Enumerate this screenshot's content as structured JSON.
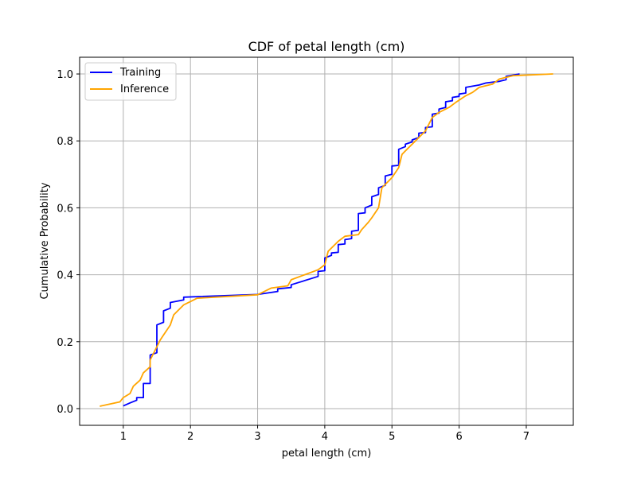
{
  "chart_data": {
    "type": "line",
    "title": "CDF of petal length (cm)",
    "xlabel": "petal length (cm)",
    "ylabel": "Cumulative Probability",
    "xlim": [
      0.35,
      7.7
    ],
    "ylim": [
      -0.05,
      1.05
    ],
    "x_ticks": [
      1,
      2,
      3,
      4,
      5,
      6,
      7
    ],
    "y_ticks": [
      0.0,
      0.2,
      0.4,
      0.6,
      0.8,
      1.0
    ],
    "x_tick_labels": [
      "1",
      "2",
      "3",
      "4",
      "5",
      "6",
      "7"
    ],
    "y_tick_labels": [
      "0.0",
      "0.2",
      "0.4",
      "0.6",
      "0.8",
      "1.0"
    ],
    "grid": true,
    "legend_position": "top-left",
    "series": [
      {
        "name": "Training",
        "color": "#0000ff",
        "points": [
          [
            1.0,
            0.008
          ],
          [
            1.1,
            0.017
          ],
          [
            1.2,
            0.025
          ],
          [
            1.2,
            0.033
          ],
          [
            1.3,
            0.033
          ],
          [
            1.3,
            0.075
          ],
          [
            1.4,
            0.075
          ],
          [
            1.4,
            0.16
          ],
          [
            1.5,
            0.167
          ],
          [
            1.5,
            0.25
          ],
          [
            1.6,
            0.258
          ],
          [
            1.6,
            0.292
          ],
          [
            1.7,
            0.3
          ],
          [
            1.7,
            0.317
          ],
          [
            1.9,
            0.325
          ],
          [
            1.9,
            0.333
          ],
          [
            3.0,
            0.341
          ],
          [
            3.3,
            0.35
          ],
          [
            3.3,
            0.358
          ],
          [
            3.5,
            0.362
          ],
          [
            3.5,
            0.37
          ],
          [
            3.9,
            0.395
          ],
          [
            3.9,
            0.41
          ],
          [
            4.0,
            0.412
          ],
          [
            4.0,
            0.45
          ],
          [
            4.1,
            0.458
          ],
          [
            4.1,
            0.465
          ],
          [
            4.2,
            0.467
          ],
          [
            4.2,
            0.49
          ],
          [
            4.3,
            0.492
          ],
          [
            4.3,
            0.505
          ],
          [
            4.4,
            0.508
          ],
          [
            4.4,
            0.53
          ],
          [
            4.5,
            0.533
          ],
          [
            4.5,
            0.583
          ],
          [
            4.6,
            0.585
          ],
          [
            4.6,
            0.6
          ],
          [
            4.7,
            0.608
          ],
          [
            4.7,
            0.633
          ],
          [
            4.8,
            0.64
          ],
          [
            4.8,
            0.66
          ],
          [
            4.9,
            0.667
          ],
          [
            4.9,
            0.695
          ],
          [
            5.0,
            0.7
          ],
          [
            5.0,
            0.725
          ],
          [
            5.1,
            0.727
          ],
          [
            5.1,
            0.775
          ],
          [
            5.2,
            0.783
          ],
          [
            5.2,
            0.79
          ],
          [
            5.3,
            0.797
          ],
          [
            5.3,
            0.803
          ],
          [
            5.4,
            0.81
          ],
          [
            5.4,
            0.823
          ],
          [
            5.5,
            0.825
          ],
          [
            5.5,
            0.84
          ],
          [
            5.6,
            0.842
          ],
          [
            5.6,
            0.88
          ],
          [
            5.7,
            0.883
          ],
          [
            5.7,
            0.895
          ],
          [
            5.8,
            0.9
          ],
          [
            5.8,
            0.917
          ],
          [
            5.9,
            0.92
          ],
          [
            5.9,
            0.93
          ],
          [
            6.0,
            0.933
          ],
          [
            6.0,
            0.94
          ],
          [
            6.1,
            0.943
          ],
          [
            6.1,
            0.96
          ],
          [
            6.3,
            0.967
          ],
          [
            6.4,
            0.973
          ],
          [
            6.6,
            0.978
          ],
          [
            6.7,
            0.983
          ],
          [
            6.7,
            0.993
          ],
          [
            6.9,
            1.0
          ]
        ]
      },
      {
        "name": "Inference",
        "color": "#ffa500",
        "points": [
          [
            0.65,
            0.007
          ],
          [
            0.95,
            0.02
          ],
          [
            1.0,
            0.033
          ],
          [
            1.1,
            0.045
          ],
          [
            1.15,
            0.067
          ],
          [
            1.25,
            0.085
          ],
          [
            1.3,
            0.107
          ],
          [
            1.4,
            0.125
          ],
          [
            1.4,
            0.145
          ],
          [
            1.45,
            0.165
          ],
          [
            1.5,
            0.185
          ],
          [
            1.55,
            0.205
          ],
          [
            1.6,
            0.22
          ],
          [
            1.65,
            0.235
          ],
          [
            1.7,
            0.25
          ],
          [
            1.75,
            0.28
          ],
          [
            1.8,
            0.29
          ],
          [
            1.9,
            0.31
          ],
          [
            2.0,
            0.32
          ],
          [
            2.1,
            0.33
          ],
          [
            3.0,
            0.34
          ],
          [
            3.2,
            0.36
          ],
          [
            3.45,
            0.367
          ],
          [
            3.5,
            0.385
          ],
          [
            3.7,
            0.4
          ],
          [
            3.9,
            0.415
          ],
          [
            4.0,
            0.43
          ],
          [
            4.05,
            0.47
          ],
          [
            4.2,
            0.5
          ],
          [
            4.3,
            0.515
          ],
          [
            4.5,
            0.52
          ],
          [
            4.55,
            0.535
          ],
          [
            4.65,
            0.557
          ],
          [
            4.7,
            0.57
          ],
          [
            4.8,
            0.6
          ],
          [
            4.85,
            0.66
          ],
          [
            5.0,
            0.69
          ],
          [
            5.1,
            0.72
          ],
          [
            5.15,
            0.76
          ],
          [
            5.25,
            0.78
          ],
          [
            5.35,
            0.8
          ],
          [
            5.5,
            0.83
          ],
          [
            5.55,
            0.85
          ],
          [
            5.6,
            0.87
          ],
          [
            5.7,
            0.885
          ],
          [
            5.85,
            0.9
          ],
          [
            5.95,
            0.915
          ],
          [
            6.1,
            0.935
          ],
          [
            6.2,
            0.945
          ],
          [
            6.3,
            0.96
          ],
          [
            6.5,
            0.97
          ],
          [
            6.6,
            0.985
          ],
          [
            6.8,
            0.995
          ],
          [
            7.4,
            1.0
          ]
        ]
      }
    ]
  }
}
